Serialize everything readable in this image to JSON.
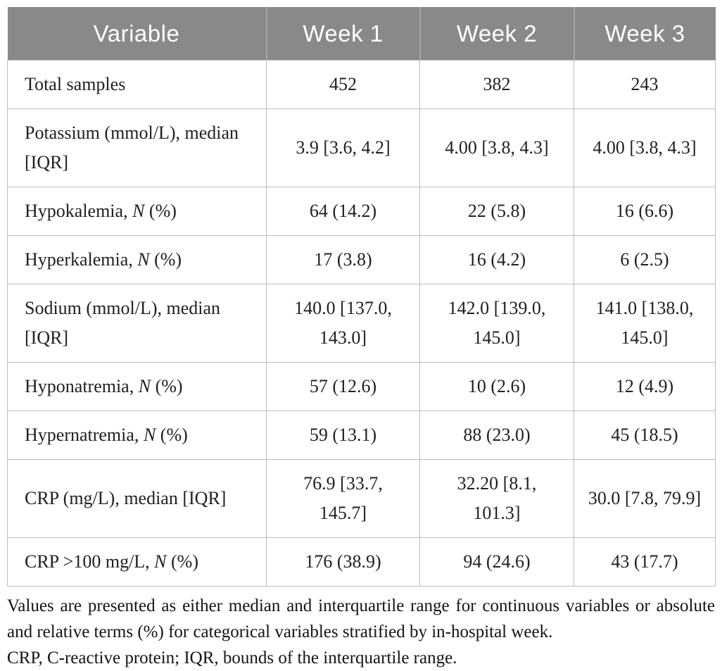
{
  "table": {
    "columns": [
      "Variable",
      "Week 1",
      "Week 2",
      "Week 3"
    ],
    "rows": [
      {
        "label_prefix": "Total samples",
        "label_italic": "",
        "label_suffix": "",
        "values": [
          "452",
          "382",
          "243"
        ]
      },
      {
        "label_prefix": "Potassium (mmol/L), median [IQR]",
        "label_italic": "",
        "label_suffix": "",
        "values": [
          "3.9 [3.6, 4.2]",
          "4.00 [3.8, 4.3]",
          "4.00 [3.8, 4.3]"
        ]
      },
      {
        "label_prefix": "Hypokalemia, ",
        "label_italic": "N",
        "label_suffix": " (%)",
        "values": [
          "64 (14.2)",
          "22 (5.8)",
          "16 (6.6)"
        ]
      },
      {
        "label_prefix": "Hyperkalemia, ",
        "label_italic": "N",
        "label_suffix": " (%)",
        "values": [
          "17 (3.8)",
          "16 (4.2)",
          "6 (2.5)"
        ]
      },
      {
        "label_prefix": "Sodium (mmol/L), median [IQR]",
        "label_italic": "",
        "label_suffix": "",
        "values": [
          "140.0 [137.0, 143.0]",
          "142.0 [139.0, 145.0]",
          "141.0 [138.0, 145.0]"
        ]
      },
      {
        "label_prefix": "Hyponatremia, ",
        "label_italic": "N",
        "label_suffix": " (%)",
        "values": [
          "57 (12.6)",
          "10 (2.6)",
          "12 (4.9)"
        ]
      },
      {
        "label_prefix": "Hypernatremia, ",
        "label_italic": "N",
        "label_suffix": " (%)",
        "values": [
          "59 (13.1)",
          "88 (23.0)",
          "45 (18.5)"
        ]
      },
      {
        "label_prefix": "CRP (mg/L), median [IQR]",
        "label_italic": "",
        "label_suffix": "",
        "values": [
          "76.9 [33.7, 145.7]",
          "32.20 [8.1, 101.3]",
          "30.0 [7.8, 79.9]"
        ]
      },
      {
        "label_prefix": "CRP >100 mg/L, ",
        "label_italic": "N",
        "label_suffix": " (%)",
        "values": [
          "176 (38.9)",
          "94 (24.6)",
          "43 (17.7)"
        ]
      }
    ]
  },
  "footnote": {
    "line1": "Values are presented as either median and interquartile range for continuous variables or absolute and relative terms (%) for categorical variables stratified by in-hospital week.",
    "line2": "CRP, C-reactive protein; IQR, bounds of the interquartile range."
  },
  "colors": {
    "header_bg": "#898989",
    "header_text": "#ffffff",
    "grid_border": "#bdbdbd",
    "body_text": "#212121"
  }
}
